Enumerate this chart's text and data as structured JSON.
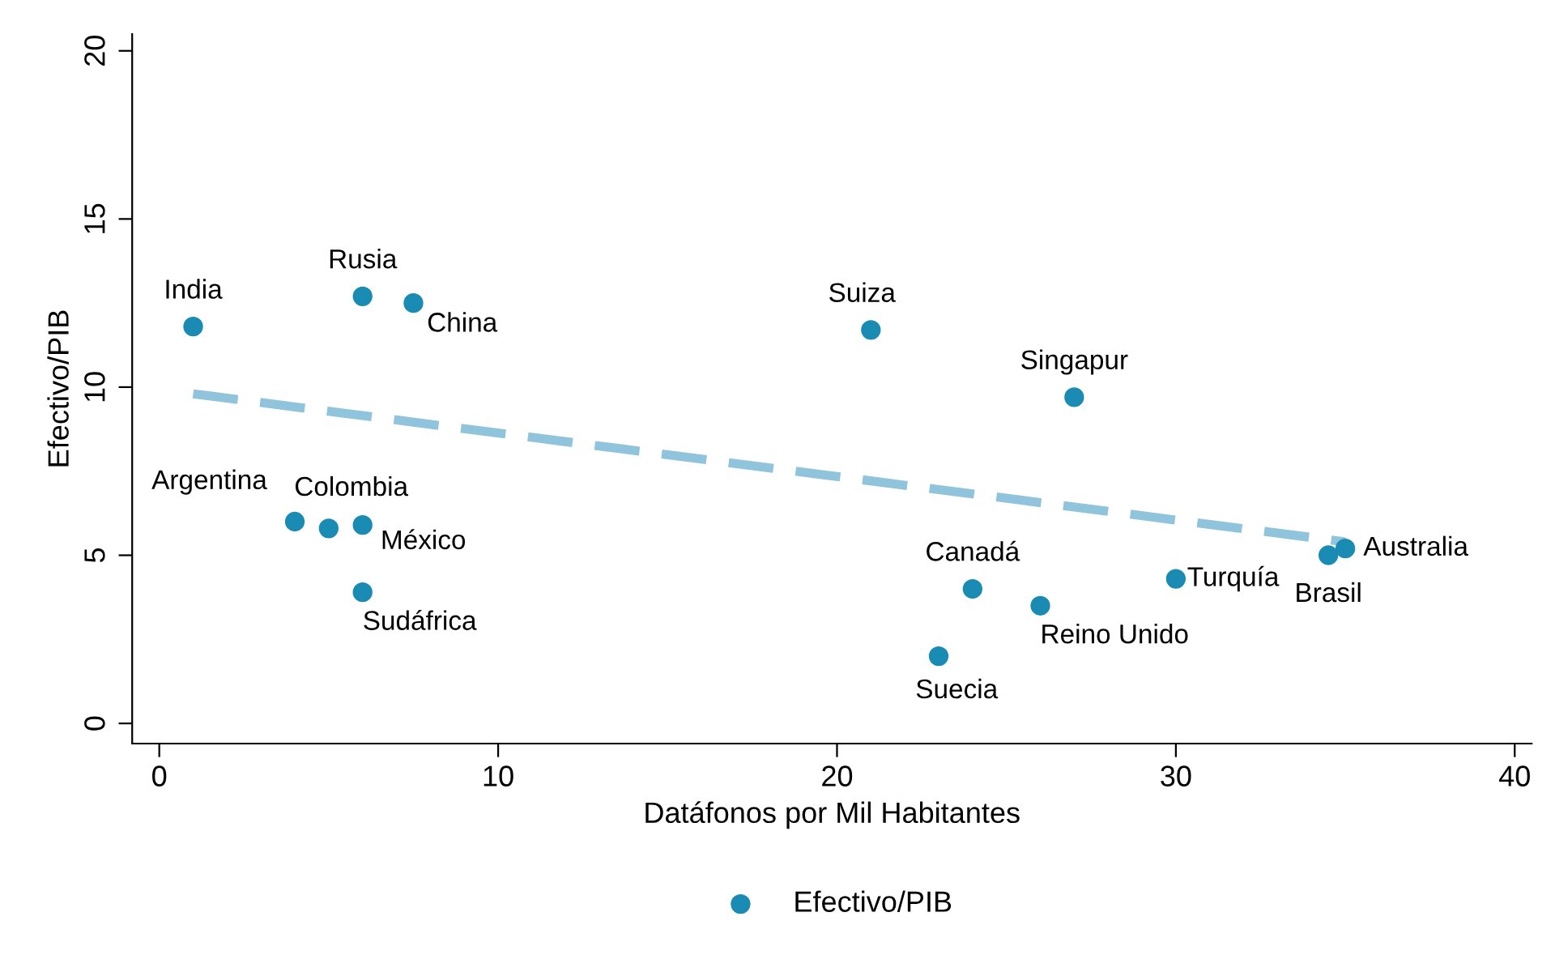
{
  "chart_data": {
    "type": "scatter",
    "xlabel": "Datáfonos por Mil Habitantes",
    "ylabel": "Efectivo/PIB",
    "xlim": [
      -0.8,
      40.5
    ],
    "ylim": [
      -0.6,
      20.5
    ],
    "xticks": [
      0,
      10,
      20,
      30,
      40
    ],
    "yticks": [
      0,
      5,
      10,
      15,
      20
    ],
    "grid": false,
    "legend": "bottom",
    "series": [
      {
        "name": "Efectivo/PIB",
        "marker": "circle",
        "color": "#1a8bb3",
        "x": [
          1,
          6,
          7.5,
          21,
          27,
          4,
          5,
          6,
          6,
          24,
          26,
          23,
          30,
          34.5,
          35
        ],
        "values": [
          11.8,
          12.7,
          12.5,
          11.7,
          9.7,
          6.0,
          5.8,
          5.9,
          3.9,
          4.0,
          3.5,
          2.0,
          4.3,
          5.0,
          5.2
        ]
      },
      {
        "type": "line",
        "marker": "none",
        "color": "#90c3dc",
        "line_style": "dashed",
        "x": [
          1,
          35
        ],
        "values": [
          9.8,
          5.4
        ]
      }
    ],
    "annotations": [
      {
        "text": "India",
        "x": 1,
        "y": 11.8
      },
      {
        "text": "Rusia",
        "x": 6,
        "y": 12.7
      },
      {
        "text": "China",
        "x": 7.5,
        "y": 12.5
      },
      {
        "text": "Suiza",
        "x": 21,
        "y": 11.7
      },
      {
        "text": "Singapur",
        "x": 27,
        "y": 9.7
      },
      {
        "text": "Argentina",
        "x": 4,
        "y": 6.0
      },
      {
        "text": "Colombia",
        "x": 5,
        "y": 5.8
      },
      {
        "text": "México",
        "x": 6,
        "y": 5.9
      },
      {
        "text": "Sudáfrica",
        "x": 6,
        "y": 3.9
      },
      {
        "text": "Canadá",
        "x": 24,
        "y": 4.0
      },
      {
        "text": "Reino Unido",
        "x": 26,
        "y": 3.5
      },
      {
        "text": "Suecia",
        "x": 23,
        "y": 2.0
      },
      {
        "text": "Turquía",
        "x": 30,
        "y": 4.3
      },
      {
        "text": "Brasil",
        "x": 34.5,
        "y": 5.0
      },
      {
        "text": "Australia",
        "x": 35,
        "y": 5.2
      }
    ]
  }
}
